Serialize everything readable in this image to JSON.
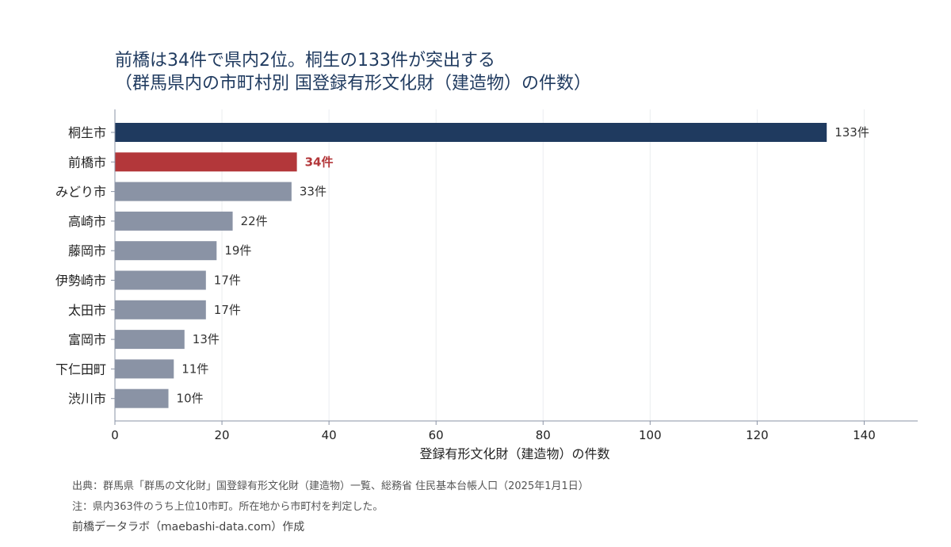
{
  "title": {
    "line1": "前橋は34件で県内2位。桐生の133件が突出する",
    "line2": "（群馬県内の市町村別 国登録有形文化財（建造物）の件数）"
  },
  "colors": {
    "highlight_top": "#1f3a5f",
    "highlight_focus": "#b3373a",
    "default_bar": "#8a93a5",
    "grid": "#ebedf0",
    "axis": "#8a93a5"
  },
  "chart_data": {
    "type": "bar",
    "orientation": "horizontal",
    "categories": [
      "桐生市",
      "前橋市",
      "みどり市",
      "高崎市",
      "藤岡市",
      "伊勢崎市",
      "太田市",
      "富岡市",
      "下仁田町",
      "渋川市"
    ],
    "values": [
      133,
      34,
      33,
      22,
      19,
      17,
      17,
      13,
      11,
      10
    ],
    "value_labels": [
      "133件",
      "34件",
      "33件",
      "22件",
      "19件",
      "17件",
      "17件",
      "13件",
      "11件",
      "10件"
    ],
    "bar_colors": [
      "#1f3a5f",
      "#b3373a",
      "#8a93a5",
      "#8a93a5",
      "#8a93a5",
      "#8a93a5",
      "#8a93a5",
      "#8a93a5",
      "#8a93a5",
      "#8a93a5"
    ],
    "xlabel": "登録有形文化財（建造物）の件数",
    "ylabel": "",
    "xlim": [
      0,
      150
    ],
    "xticks": [
      0,
      20,
      40,
      60,
      80,
      100,
      120,
      140
    ],
    "grid": true
  },
  "footer": {
    "source": "出典：群馬県「群馬の文化財」国登録有形文化財（建造物）一覧、総務省 住民基本台帳人口（2025年1月1日）",
    "note": "注：県内363件のうち上位10市町。所在地から市町村を判定した。",
    "credit": "前橋データラボ（maebashi-data.com）作成"
  }
}
